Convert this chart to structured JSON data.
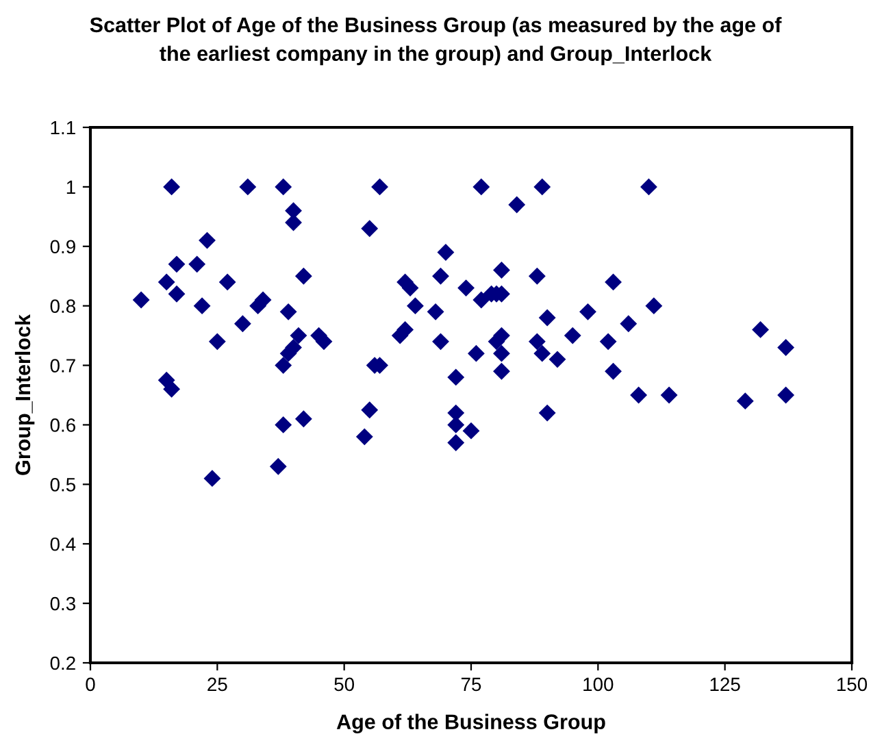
{
  "chart_data": {
    "type": "scatter",
    "title": "Scatter Plot of Age of the Business Group (as measured by the age of\nthe earliest company in the group) and Group_Interlock",
    "xlabel": "Age of the Business Group",
    "ylabel": "Group_Interlock",
    "x": [
      16,
      17,
      15,
      17,
      10,
      15,
      16,
      21,
      23,
      22,
      25,
      24,
      27,
      31,
      30,
      33,
      34,
      38,
      38,
      38,
      37,
      39,
      39,
      40,
      40,
      40,
      41,
      42,
      42,
      45,
      46,
      54,
      55,
      55,
      56,
      57,
      57,
      61,
      62,
      62,
      63,
      64,
      68,
      69,
      69,
      70,
      72,
      72,
      72,
      72,
      74,
      75,
      76,
      77,
      77,
      79,
      80,
      80,
      81,
      81,
      81,
      81,
      81,
      84,
      88,
      88,
      89,
      89,
      90,
      90,
      92,
      95,
      98,
      102,
      103,
      103,
      106,
      108,
      110,
      111,
      114,
      129,
      132,
      137,
      137
    ],
    "series": [
      {
        "color": "#000080",
        "values": [
          1.0,
          0.87,
          0.84,
          0.82,
          0.81,
          0.675,
          0.66,
          0.87,
          0.91,
          0.8,
          0.74,
          0.51,
          0.84,
          1.0,
          0.77,
          0.8,
          0.81,
          1.0,
          0.7,
          0.6,
          0.53,
          0.79,
          0.72,
          0.96,
          0.94,
          0.73,
          0.75,
          0.85,
          0.61,
          0.75,
          0.74,
          0.58,
          0.93,
          0.625,
          0.7,
          0.7,
          1.0,
          0.75,
          0.76,
          0.84,
          0.83,
          0.8,
          0.79,
          0.85,
          0.74,
          0.89,
          0.68,
          0.62,
          0.6,
          0.57,
          0.83,
          0.59,
          0.72,
          1.0,
          0.81,
          0.82,
          0.82,
          0.74,
          0.86,
          0.82,
          0.75,
          0.72,
          0.69,
          0.97,
          0.85,
          0.74,
          1.0,
          0.72,
          0.78,
          0.62,
          0.71,
          0.75,
          0.79,
          0.74,
          0.69,
          0.84,
          0.77,
          0.65,
          1.0,
          0.8,
          0.65,
          0.64,
          0.76,
          0.73,
          0.65
        ]
      }
    ],
    "xlim": [
      0,
      150
    ],
    "xticks": [
      0,
      25,
      50,
      75,
      100,
      125,
      150
    ],
    "ylim": [
      0.2,
      1.1
    ],
    "yticks": [
      0.2,
      0.3,
      0.4,
      0.5,
      0.6,
      0.7,
      0.8,
      0.9,
      1,
      1.1
    ],
    "marker": "diamond",
    "grid": false,
    "legend": false
  }
}
